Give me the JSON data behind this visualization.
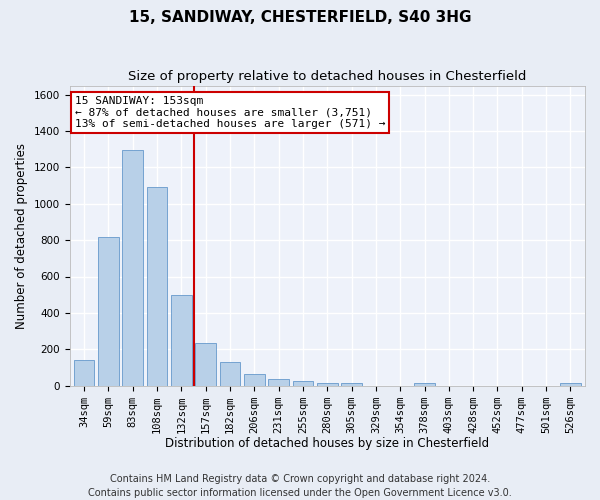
{
  "title": "15, SANDIWAY, CHESTERFIELD, S40 3HG",
  "subtitle": "Size of property relative to detached houses in Chesterfield",
  "xlabel": "Distribution of detached houses by size in Chesterfield",
  "ylabel": "Number of detached properties",
  "categories": [
    "34sqm",
    "59sqm",
    "83sqm",
    "108sqm",
    "132sqm",
    "157sqm",
    "182sqm",
    "206sqm",
    "231sqm",
    "255sqm",
    "280sqm",
    "305sqm",
    "329sqm",
    "354sqm",
    "378sqm",
    "403sqm",
    "428sqm",
    "452sqm",
    "477sqm",
    "501sqm",
    "526sqm"
  ],
  "values": [
    140,
    815,
    1295,
    1090,
    500,
    235,
    130,
    65,
    38,
    27,
    15,
    14,
    0,
    0,
    14,
    0,
    0,
    0,
    0,
    0,
    14
  ],
  "bar_color": "#b8d0e8",
  "bar_edge_color": "#6699cc",
  "vline_x_idx": 5,
  "vline_color": "#cc0000",
  "annotation_text": "15 SANDIWAY: 153sqm\n← 87% of detached houses are smaller (3,751)\n13% of semi-detached houses are larger (571) →",
  "annotation_box_color": "#ffffff",
  "annotation_box_edge_color": "#cc0000",
  "ylim": [
    0,
    1650
  ],
  "yticks": [
    0,
    200,
    400,
    600,
    800,
    1000,
    1200,
    1400,
    1600
  ],
  "footer": "Contains HM Land Registry data © Crown copyright and database right 2024.\nContains public sector information licensed under the Open Government Licence v3.0.",
  "bg_color": "#e8edf5",
  "plot_bg_color": "#eef2fa",
  "grid_color": "#ffffff",
  "title_fontsize": 11,
  "subtitle_fontsize": 9.5,
  "xlabel_fontsize": 8.5,
  "ylabel_fontsize": 8.5,
  "tick_fontsize": 7.5,
  "footer_fontsize": 7,
  "annotation_fontsize": 8
}
